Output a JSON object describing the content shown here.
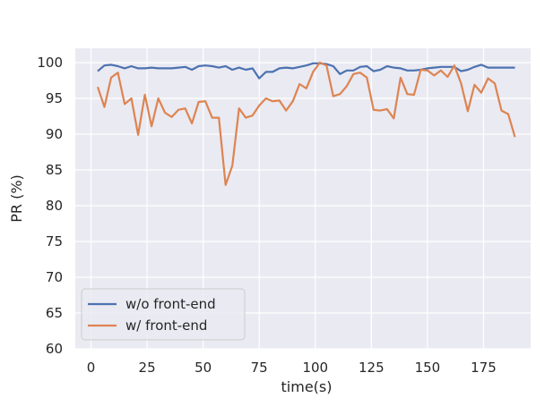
{
  "chart_data": {
    "type": "line",
    "title": "",
    "xlabel": "time(s)",
    "ylabel": "PR (%)",
    "xlim": [
      -7,
      196
    ],
    "ylim": [
      60,
      102
    ],
    "xticks": [
      0,
      25,
      50,
      75,
      100,
      125,
      150,
      175
    ],
    "yticks": [
      60,
      65,
      70,
      75,
      80,
      85,
      90,
      95,
      100
    ],
    "grid": true,
    "background": "#eaeaf2",
    "legend_position": "lower-left",
    "x": [
      3,
      6,
      9,
      12,
      15,
      18,
      21,
      24,
      27,
      30,
      33,
      36,
      39,
      42,
      45,
      48,
      51,
      54,
      57,
      60,
      63,
      66,
      69,
      72,
      75,
      78,
      81,
      84,
      87,
      90,
      93,
      96,
      99,
      102,
      105,
      108,
      111,
      114,
      117,
      120,
      123,
      126,
      129,
      132,
      135,
      138,
      141,
      144,
      147,
      150,
      153,
      156,
      159,
      162,
      165,
      168,
      171,
      174,
      177,
      180,
      183,
      186,
      189
    ],
    "series": [
      {
        "name": "w/o front-end",
        "color": "#4c72b0",
        "values": [
          98.8,
          99.6,
          99.7,
          99.5,
          99.2,
          99.5,
          99.2,
          99.2,
          99.3,
          99.2,
          99.2,
          99.2,
          99.3,
          99.4,
          99.0,
          99.5,
          99.6,
          99.5,
          99.3,
          99.5,
          99.0,
          99.3,
          99.0,
          99.2,
          97.8,
          98.7,
          98.7,
          99.2,
          99.3,
          99.2,
          99.4,
          99.6,
          99.9,
          99.9,
          99.8,
          99.5,
          98.4,
          98.9,
          98.9,
          99.4,
          99.5,
          98.8,
          99.0,
          99.5,
          99.3,
          99.2,
          98.9,
          98.9,
          99.0,
          99.2,
          99.3,
          99.4,
          99.4,
          99.4,
          98.8,
          99.0,
          99.4,
          99.7,
          99.3,
          99.3,
          99.3,
          99.3,
          99.3
        ]
      },
      {
        "name": "w/ front-end",
        "color": "#dd8452",
        "values": [
          96.6,
          93.8,
          97.9,
          98.6,
          94.2,
          95.0,
          89.9,
          95.5,
          91.1,
          95.0,
          93.0,
          92.4,
          93.4,
          93.6,
          91.5,
          94.5,
          94.6,
          92.3,
          92.3,
          82.9,
          85.6,
          93.6,
          92.3,
          92.6,
          94.0,
          95.0,
          94.6,
          94.7,
          93.3,
          94.6,
          97.0,
          96.4,
          98.7,
          100.0,
          99.6,
          95.3,
          95.6,
          96.7,
          98.4,
          98.6,
          97.9,
          93.4,
          93.3,
          93.5,
          92.2,
          97.9,
          95.6,
          95.5,
          99.0,
          98.9,
          98.2,
          98.9,
          98.0,
          99.6,
          97.1,
          93.2,
          96.9,
          95.8,
          97.8,
          97.1,
          93.3,
          92.8,
          89.6
        ]
      }
    ]
  }
}
